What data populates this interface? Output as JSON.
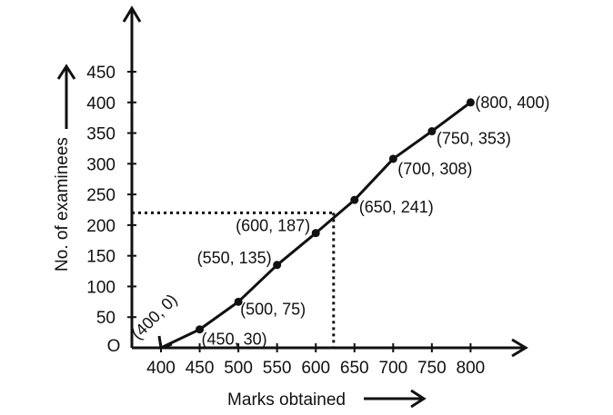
{
  "chart_data": {
    "type": "line",
    "title": "",
    "xlabel": "Marks obtained",
    "ylabel": "No. of examinees",
    "origin_label": "O",
    "x_ticks": [
      400,
      450,
      500,
      550,
      600,
      650,
      700,
      750,
      800
    ],
    "y_ticks": [
      50,
      100,
      150,
      200,
      250,
      300,
      350,
      400,
      450
    ],
    "xlim": [
      400,
      800
    ],
    "ylim": [
      0,
      450
    ],
    "grid": false,
    "series": [
      {
        "points": [
          {
            "x": 400,
            "y": 0,
            "label": "(400, 0)"
          },
          {
            "x": 450,
            "y": 30,
            "label": "(450, 30)"
          },
          {
            "x": 500,
            "y": 75,
            "label": "(500, 75)"
          },
          {
            "x": 550,
            "y": 135,
            "label": "(550, 135)"
          },
          {
            "x": 600,
            "y": 187,
            "label": "(600, 187)"
          },
          {
            "x": 650,
            "y": 241,
            "label": "(650, 241)"
          },
          {
            "x": 700,
            "y": 308,
            "label": "(700, 308)"
          },
          {
            "x": 750,
            "y": 353,
            "label": "(750, 353)"
          },
          {
            "x": 800,
            "y": 400,
            "label": "(800, 400)"
          }
        ]
      }
    ],
    "guide_lines": [
      {
        "style": "dotted",
        "y": 220,
        "x": 623
      }
    ],
    "colors": {
      "line": "#111111",
      "background": "#ffffff"
    }
  }
}
